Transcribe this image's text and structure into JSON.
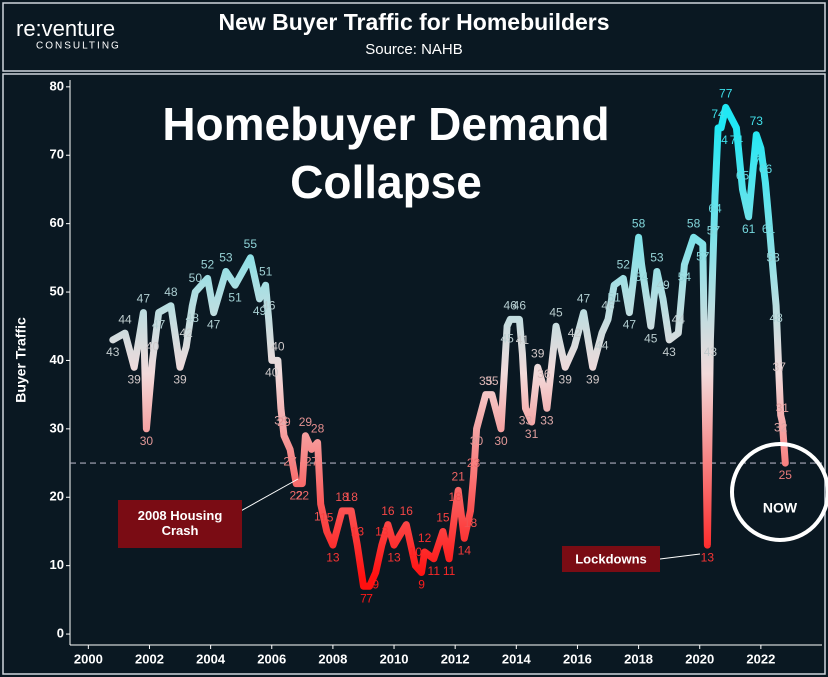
{
  "chart_data": {
    "type": "line",
    "logo": "re:venture",
    "logo_sub": "CONSULTING",
    "title": "New Buyer Traffic for Homebuilders",
    "subtitle": "Source: NAHB",
    "headline": [
      "Homebuyer Demand",
      "Collapse"
    ],
    "ylabel": "Buyer Traffic",
    "annotations": [
      "2008 Housing Crash",
      "Lockdowns",
      "NOW"
    ],
    "reference_line": 25,
    "xlim": [
      1999.4,
      2024.0
    ],
    "ylim": [
      -1.6,
      81
    ],
    "xticks": [
      2000,
      2002,
      2004,
      2006,
      2008,
      2010,
      2012,
      2014,
      2016,
      2018,
      2020,
      2022
    ],
    "yticks": [
      0,
      10,
      20,
      30,
      40,
      50,
      60,
      70,
      80
    ],
    "grid": false,
    "series": [
      {
        "name": "Buyer Traffic",
        "x": [
          2000.8,
          2001.2,
          2001.5,
          2001.8,
          2001.9,
          2002.1,
          2002.3,
          2002.7,
          2003.0,
          2003.2,
          2003.4,
          2003.5,
          2003.9,
          2004.1,
          2004.5,
          2004.8,
          2005.3,
          2005.6,
          2005.8,
          2005.9,
          2006.0,
          2006.2,
          2006.3,
          2006.4,
          2006.6,
          2006.8,
          2007.0,
          2007.1,
          2007.3,
          2007.5,
          2007.6,
          2007.8,
          2008.0,
          2008.3,
          2008.6,
          2008.8,
          2009.0,
          2009.2,
          2009.4,
          2009.6,
          2009.8,
          2010.0,
          2010.4,
          2010.7,
          2010.9,
          2011.0,
          2011.3,
          2011.6,
          2011.8,
          2012.0,
          2012.1,
          2012.3,
          2012.5,
          2012.6,
          2012.7,
          2013.0,
          2013.2,
          2013.5,
          2013.7,
          2013.8,
          2014.1,
          2014.2,
          2014.3,
          2014.5,
          2014.7,
          2014.9,
          2015.0,
          2015.3,
          2015.6,
          2015.9,
          2016.2,
          2016.5,
          2016.8,
          2017.0,
          2017.2,
          2017.5,
          2017.7,
          2018.0,
          2018.1,
          2018.4,
          2018.6,
          2018.8,
          2019.0,
          2019.3,
          2019.5,
          2019.8,
          2020.1,
          2020.25,
          2020.35,
          2020.45,
          2020.5,
          2020.6,
          2020.7,
          2020.85,
          2021.2,
          2021.4,
          2021.6,
          2021.85,
          2022.0,
          2022.15,
          2022.25,
          2022.4,
          2022.5,
          2022.6,
          2022.65,
          2022.7,
          2022.8
        ],
        "values": [
          43,
          44,
          39,
          47,
          30,
          40,
          47,
          48,
          39,
          42,
          48,
          50,
          52,
          47,
          53,
          51,
          55,
          49,
          51,
          46,
          40,
          40,
          33,
          29,
          27,
          22,
          22,
          29,
          27,
          28,
          19,
          15,
          13,
          18,
          18,
          13,
          7,
          7,
          9,
          13,
          16,
          13,
          16,
          10,
          9,
          12,
          11,
          15,
          11,
          18,
          21,
          14,
          18,
          23,
          30,
          35,
          35,
          30,
          45,
          46,
          46,
          41,
          33,
          31,
          39,
          36,
          33,
          45,
          39,
          42,
          47,
          39,
          44,
          46,
          51,
          52,
          47,
          58,
          54,
          45,
          53,
          49,
          43,
          44,
          54,
          58,
          57,
          13,
          43,
          57,
          64,
          74,
          74,
          77,
          74,
          65,
          61,
          73,
          71,
          66,
          61,
          53,
          48,
          37,
          32,
          31,
          25
        ]
      }
    ]
  }
}
